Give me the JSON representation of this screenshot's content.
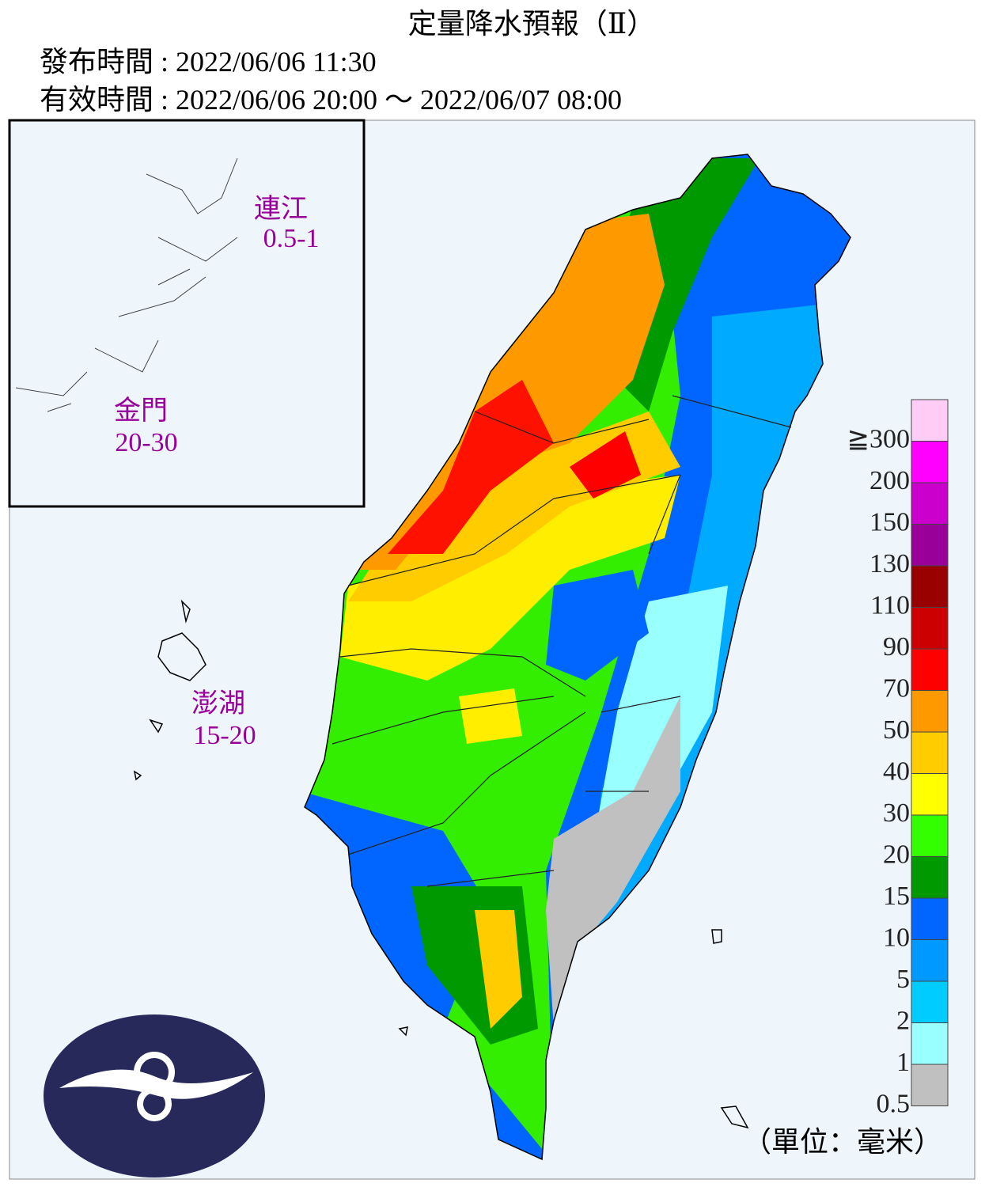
{
  "header": {
    "title": "定量降水預報（Ⅱ）",
    "issue_time": "發布時間 : 2022/06/06 11:30",
    "valid_time": "有效時間 : 2022/06/06 20:00 ～ 2022/06/07 08:00"
  },
  "islands": [
    {
      "name": "連江",
      "value": "0.5-1"
    },
    {
      "name": "金門",
      "value": "20-30"
    },
    {
      "name": "澎湖",
      "value": "15-20"
    }
  ],
  "legend": {
    "unit": "（單位：毫米）",
    "items": [
      {
        "label": "≧300",
        "color": "#ffccf5"
      },
      {
        "label": "200",
        "color": "#ff00ff"
      },
      {
        "label": "150",
        "color": "#cc00cc"
      },
      {
        "label": "130",
        "color": "#990099"
      },
      {
        "label": "110",
        "color": "#990000"
      },
      {
        "label": "90",
        "color": "#cc0000"
      },
      {
        "label": "70",
        "color": "#ff0000"
      },
      {
        "label": "50",
        "color": "#ff9900"
      },
      {
        "label": "40",
        "color": "#ffcc00"
      },
      {
        "label": "30",
        "color": "#ffff00"
      },
      {
        "label": "20",
        "color": "#33ff00"
      },
      {
        "label": "15",
        "color": "#009900"
      },
      {
        "label": "10",
        "color": "#0066ff"
      },
      {
        "label": "5",
        "color": "#0099ff"
      },
      {
        "label": "2",
        "color": "#00ccff"
      },
      {
        "label": "1",
        "color": "#99ffff"
      },
      {
        "label": "0.5",
        "color": "#c0c0c0"
      }
    ]
  }
}
